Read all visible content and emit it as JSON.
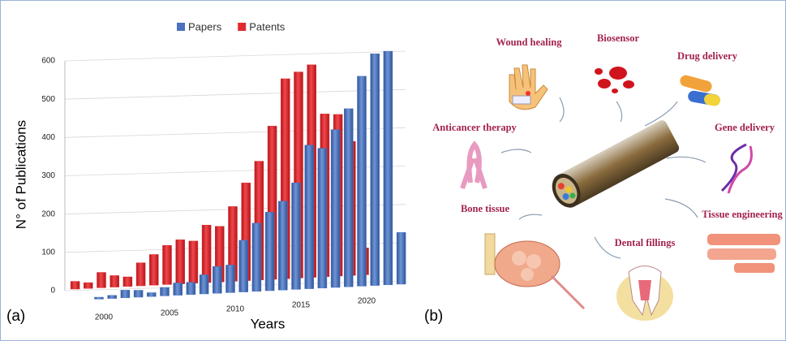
{
  "chart_data": {
    "type": "bar3d",
    "panel_label": "(a)",
    "x_label": "Years",
    "y_label": "N° of Publications",
    "categories": [
      null,
      null,
      "2000",
      null,
      null,
      null,
      null,
      "2005",
      null,
      null,
      null,
      null,
      "2010",
      null,
      null,
      null,
      null,
      "2015",
      null,
      null,
      null,
      null,
      "2020",
      null,
      null,
      null
    ],
    "series": [
      {
        "name": "Papers",
        "color": "#4a72c0",
        "values": [
          null,
          null,
          5,
          8,
          20,
          18,
          10,
          22,
          32,
          32,
          50,
          70,
          72,
          135,
          178,
          205,
          232,
          278,
          375,
          365,
          412,
          465,
          548,
          605,
          610,
          135
        ]
      },
      {
        "name": "Patents",
        "color": "#e02a2f",
        "values": [
          20,
          15,
          40,
          30,
          25,
          60,
          80,
          102,
          115,
          110,
          150,
          145,
          195,
          255,
          310,
          400,
          522,
          538,
          555,
          425,
          422,
          350,
          70,
          null,
          null,
          null
        ]
      }
    ],
    "ylim": [
      0,
      600
    ],
    "yticks": [
      0,
      100,
      200,
      300,
      400,
      500,
      600
    ],
    "grid": true,
    "legend": "top"
  },
  "diagram": {
    "panel_label": "(b)",
    "nodes": [
      {
        "label": "Wound healing"
      },
      {
        "label": "Biosensor"
      },
      {
        "label": "Drug delivery"
      },
      {
        "label": "Anticancer therapy"
      },
      {
        "label": "Gene delivery"
      },
      {
        "label": "Bone tissue"
      },
      {
        "label": "Tissue engineering"
      },
      {
        "label": "Dental fillings"
      }
    ]
  }
}
